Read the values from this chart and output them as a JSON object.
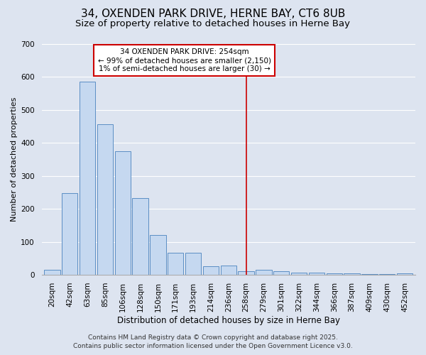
{
  "title": "34, OXENDEN PARK DRIVE, HERNE BAY, CT6 8UB",
  "subtitle": "Size of property relative to detached houses in Herne Bay",
  "xlabel": "Distribution of detached houses by size in Herne Bay",
  "ylabel": "Number of detached properties",
  "bar_labels": [
    "20sqm",
    "42sqm",
    "63sqm",
    "85sqm",
    "106sqm",
    "128sqm",
    "150sqm",
    "171sqm",
    "193sqm",
    "214sqm",
    "236sqm",
    "258sqm",
    "279sqm",
    "301sqm",
    "322sqm",
    "344sqm",
    "366sqm",
    "387sqm",
    "409sqm",
    "430sqm",
    "452sqm"
  ],
  "bar_values": [
    15,
    248,
    585,
    456,
    375,
    233,
    120,
    67,
    67,
    27,
    28,
    10,
    15,
    12,
    7,
    7,
    4,
    4,
    3,
    2,
    4
  ],
  "bar_color": "#c5d8f0",
  "bar_edge_color": "#5b8ec4",
  "background_color": "#dde4f0",
  "grid_color": "#ffffff",
  "vline_x_index": 11,
  "vline_color": "#cc0000",
  "annotation_title": "34 OXENDEN PARK DRIVE: 254sqm",
  "annotation_line1": "← 99% of detached houses are smaller (2,150)",
  "annotation_line2": "1% of semi-detached houses are larger (30) →",
  "annotation_box_facecolor": "#ffffff",
  "annotation_box_edgecolor": "#cc0000",
  "ylim": [
    0,
    700
  ],
  "yticks": [
    0,
    100,
    200,
    300,
    400,
    500,
    600,
    700
  ],
  "footer1": "Contains HM Land Registry data © Crown copyright and database right 2025.",
  "footer2": "Contains public sector information licensed under the Open Government Licence v3.0.",
  "title_fontsize": 11,
  "subtitle_fontsize": 9.5,
  "ylabel_fontsize": 8,
  "xlabel_fontsize": 8.5,
  "tick_fontsize": 7.5,
  "annotation_fontsize": 7.5,
  "footer_fontsize": 6.5
}
